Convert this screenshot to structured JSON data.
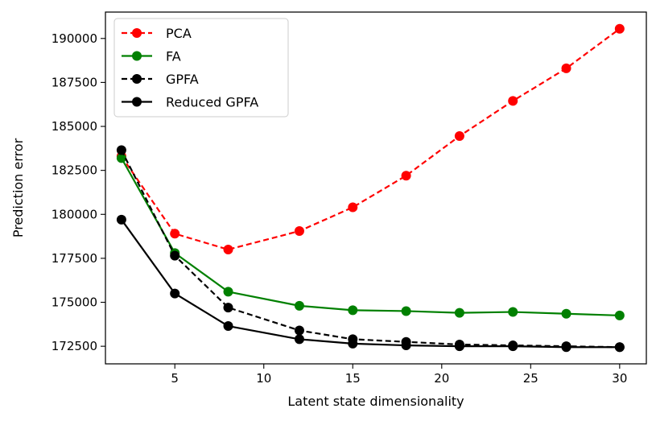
{
  "chart_data": {
    "type": "line",
    "title": "",
    "xlabel": "Latent state dimensionality",
    "ylabel": "Prediction error",
    "xlim": [
      1.1,
      31.5
    ],
    "ylim": [
      171500,
      191500
    ],
    "xticks": [
      5,
      10,
      15,
      20,
      25,
      30
    ],
    "yticks": [
      172500,
      175000,
      177500,
      180000,
      182500,
      185000,
      187500,
      190000
    ],
    "grid": false,
    "legend": "top-left",
    "x": [
      2,
      5,
      8,
      12,
      15,
      18,
      21,
      24,
      27,
      30
    ],
    "series": [
      {
        "name": "PCA",
        "color": "#ff0000",
        "dashed": true,
        "marker": "circle",
        "values": [
          183300,
          178900,
          178000,
          179050,
          180400,
          182200,
          184450,
          186450,
          188300,
          190550
        ]
      },
      {
        "name": "FA",
        "color": "#008000",
        "dashed": false,
        "marker": "circle",
        "values": [
          183200,
          177800,
          175600,
          174800,
          174550,
          174500,
          174400,
          174450,
          174350,
          174250
        ]
      },
      {
        "name": "GPFA",
        "color": "#000000",
        "dashed": true,
        "marker": "circle",
        "values": [
          183650,
          177650,
          174700,
          173400,
          172900,
          172750,
          172600,
          172550,
          172500,
          172450
        ]
      },
      {
        "name": "Reduced GPFA",
        "color": "#000000",
        "dashed": false,
        "marker": "circle",
        "values": [
          179700,
          175500,
          173650,
          172900,
          172650,
          172550,
          172500,
          172500,
          172450,
          172450
        ]
      }
    ]
  }
}
